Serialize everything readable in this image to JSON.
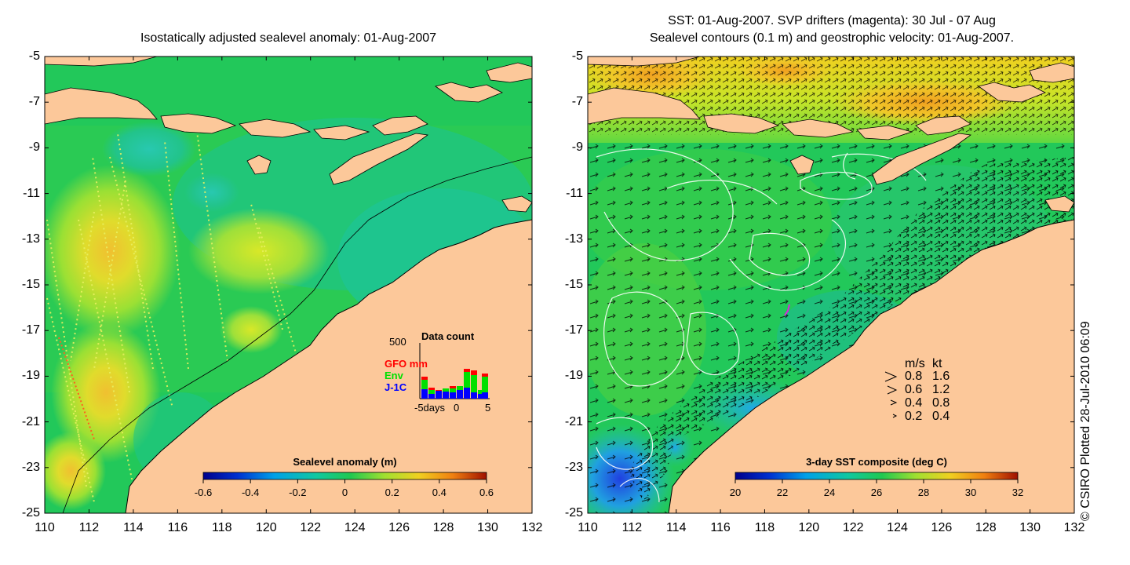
{
  "left_panel": {
    "title": "Isostatically adjusted sealevel anomaly: 01-Aug-2007",
    "colorbar": {
      "title": "Sealevel anomaly (m)",
      "ticks": [
        "-0.6",
        "-0.4",
        "-0.2",
        "0",
        "0.2",
        "0.4",
        "0.6"
      ]
    },
    "inset": {
      "title": "Data count",
      "ymax": "500",
      "series": [
        {
          "name": "GFO mm",
          "color": "#ff0000"
        },
        {
          "name": "Env",
          "color": "#00e000"
        },
        {
          "name": "J-1C",
          "color": "#0000ff"
        }
      ],
      "xlabels": [
        "-5days",
        "0",
        "5"
      ]
    }
  },
  "right_panel": {
    "title_line1": "SST: 01-Aug-2007. SVP drifters (magenta): 30 Jul - 07 Aug",
    "title_line2": "Sealevel contours (0.1 m) and geostrophic velocity: 01-Aug-2007.",
    "colorbar": {
      "title": "3-day SST composite (deg C)",
      "ticks": [
        "20",
        "22",
        "24",
        "26",
        "28",
        "30",
        "32"
      ]
    },
    "velocity_legend": {
      "header_ms": "m/s",
      "header_kt": "kt",
      "rows": [
        {
          "ms": "0.8",
          "kt": "1.6"
        },
        {
          "ms": "0.6",
          "kt": "1.2"
        },
        {
          "ms": "0.4",
          "kt": "0.8"
        },
        {
          "ms": "0.2",
          "kt": "0.4"
        }
      ]
    }
  },
  "axes": {
    "lat_labels": [
      "-5",
      "-7",
      "-9",
      "-11",
      "-13",
      "-15",
      "-17",
      "-19",
      "-21",
      "-23",
      "-25"
    ],
    "lon_labels": [
      "110",
      "112",
      "114",
      "116",
      "118",
      "120",
      "122",
      "124",
      "126",
      "128",
      "130",
      "132"
    ]
  },
  "credit": "© CSIRO Plotted 28-Jul-2010 06:09",
  "colors": {
    "land": "#fcc89a",
    "sea_mid": "#1ec46a",
    "sea_green": "#22c85a",
    "anomaly_high": "#c8e628",
    "sst_warm": "#f0c828",
    "sst_cool": "#28a8e0"
  }
}
